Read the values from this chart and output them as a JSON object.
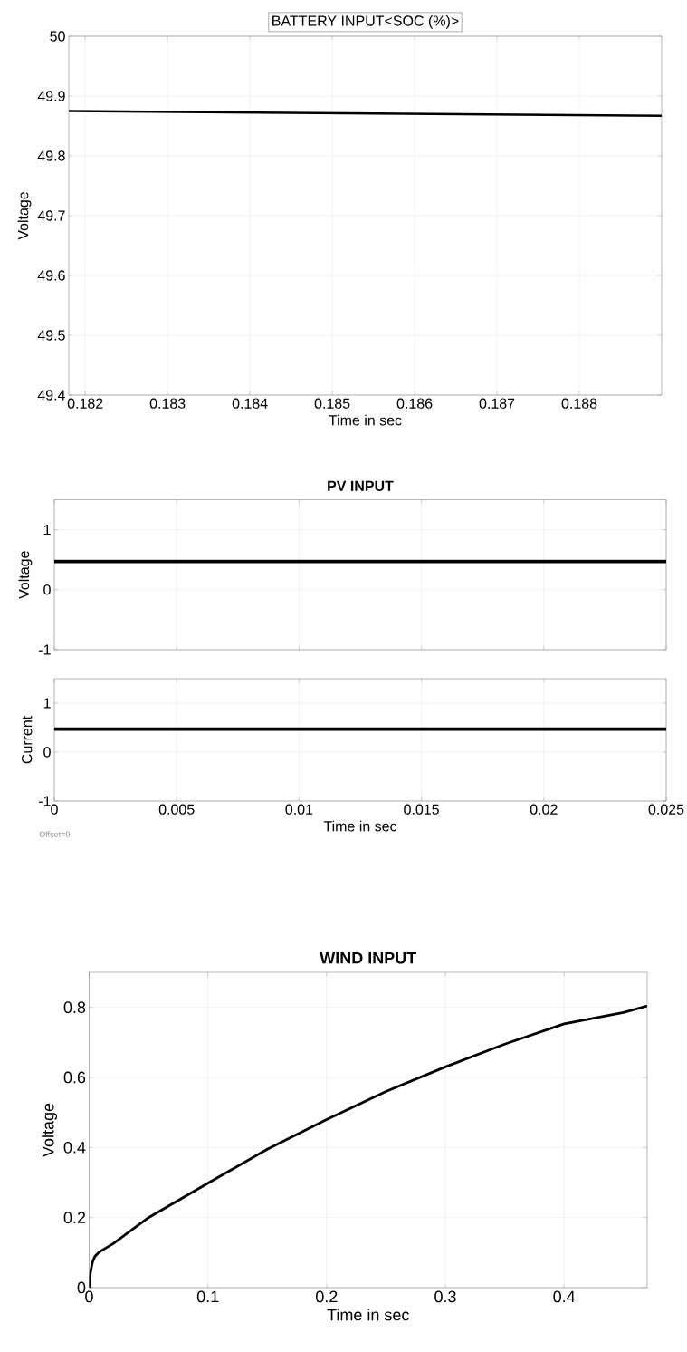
{
  "chart_data": [
    {
      "type": "line",
      "title": "BATTERY INPUT<SOC (%)>",
      "xlabel": "Time in sec",
      "ylabel": "Voltage",
      "x": [
        0.1818,
        0.189
      ],
      "series": [
        {
          "color": "#000000",
          "values": [
            49.875,
            49.867
          ]
        }
      ],
      "xlim": [
        0.1818,
        0.189
      ],
      "ylim": [
        49.4,
        50
      ],
      "xticks": [
        0.182,
        0.183,
        0.184,
        0.185,
        0.186,
        0.187,
        0.188
      ],
      "yticks": [
        49.4,
        49.5,
        49.6,
        49.7,
        49.8,
        49.9,
        50
      ],
      "grid": true,
      "marker": "none",
      "line_style": "solid"
    },
    {
      "type": "line",
      "title": "PV INPUT",
      "ylabel": "Voltage",
      "x": [
        0,
        0.025
      ],
      "series": [
        {
          "color": "#000000",
          "values": [
            0.47,
            0.47
          ]
        }
      ],
      "xlim": [
        0,
        0.025
      ],
      "ylim": [
        -1,
        1.5
      ],
      "xticks": [
        0,
        0.005,
        0.01,
        0.015,
        0.02,
        0.025
      ],
      "yticks": [
        -1,
        0,
        1
      ],
      "tick_labels": "y",
      "grid": true,
      "marker": "none",
      "line_style": "solid"
    },
    {
      "type": "line",
      "xlabel": "Time in sec",
      "ylabel": "Current",
      "x": [
        0,
        0.025
      ],
      "series": [
        {
          "color": "#000000",
          "values": [
            0.47,
            0.47
          ]
        }
      ],
      "xlim": [
        0,
        0.025
      ],
      "ylim": [
        -1,
        1.5
      ],
      "xticks": [
        0,
        0.005,
        0.01,
        0.015,
        0.02,
        0.025
      ],
      "yticks": [
        -1,
        0,
        1
      ],
      "grid": true,
      "marker": "none",
      "line_style": "solid",
      "annotations": [
        "Offset=0"
      ]
    },
    {
      "type": "line",
      "title": "WIND INPUT",
      "xlabel": "Time in sec",
      "ylabel": "Voltage",
      "x": [
        0,
        0.001,
        0.002,
        0.003,
        0.005,
        0.008,
        0.01,
        0.02,
        0.05,
        0.1,
        0.15,
        0.2,
        0.25,
        0.3,
        0.35,
        0.4,
        0.45,
        0.47
      ],
      "series": [
        {
          "color": "#000000",
          "values": [
            0,
            0.04,
            0.06,
            0.075,
            0.09,
            0.1,
            0.105,
            0.125,
            0.2,
            0.298,
            0.395,
            0.48,
            0.56,
            0.63,
            0.695,
            0.753,
            0.785,
            0.804
          ]
        }
      ],
      "xlim": [
        0,
        0.47
      ],
      "ylim": [
        0,
        0.9
      ],
      "xticks": [
        0,
        0.1,
        0.2,
        0.3,
        0.4
      ],
      "yticks": [
        0,
        0.2,
        0.4,
        0.6,
        0.8
      ],
      "grid": true,
      "marker": "none",
      "line_style": "solid"
    }
  ]
}
